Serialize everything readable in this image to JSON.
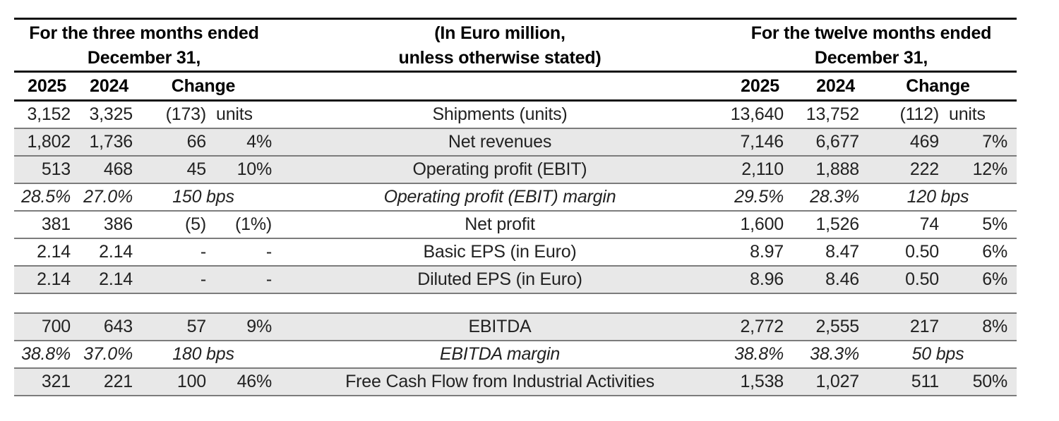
{
  "colors": {
    "shade": "#e8e8e8",
    "row-line": "#7c7c7c",
    "head-line": "#131313",
    "text": "#222222"
  },
  "header": {
    "left_period_line1": "For the three months ended",
    "left_period_line2": "December 31,",
    "unit_note_line1": "(In Euro million,",
    "unit_note_line2": "unless otherwise stated)",
    "right_period_line1": "For the twelve months ended",
    "right_period_line2": "December 31,",
    "col_2025": "2025",
    "col_2024": "2024",
    "col_change": "Change"
  },
  "rows": [
    {
      "label": "Shipments (units)",
      "l1": "3,152",
      "l2": "3,325",
      "lchg": "(173)",
      "lsuf": "units",
      "r1": "13,640",
      "r2": "13,752",
      "rchg": "(112)",
      "rsuf": "units"
    },
    {
      "label": "Net revenues",
      "l1": "1,802",
      "l2": "1,736",
      "lchg": "66",
      "lpct": "4%",
      "r1": "7,146",
      "r2": "6,677",
      "rchg": "469",
      "rpct": "7%"
    },
    {
      "label": "Operating profit (EBIT)",
      "l1": "513",
      "l2": "468",
      "lchg": "45",
      "lpct": "10%",
      "r1": "2,110",
      "r2": "1,888",
      "rchg": "222",
      "rpct": "12%"
    },
    {
      "label": "Operating profit (EBIT) margin",
      "l1": "28.5%",
      "l2": "27.0%",
      "lchg": "150 bps",
      "r1": "29.5%",
      "r2": "28.3%",
      "rchg": "120 bps"
    },
    {
      "label": "Net profit",
      "l1": "381",
      "l2": "386",
      "lchg": "(5)",
      "lpct": "(1%)",
      "r1": "1,600",
      "r2": "1,526",
      "rchg": "74",
      "rpct": "5%"
    },
    {
      "label": "Basic EPS (in Euro)",
      "l1": "2.14",
      "l2": "2.14",
      "lchg": "-",
      "lpct": "-",
      "r1": "8.97",
      "r2": "8.47",
      "rchg": "0.50",
      "rpct": "6%"
    },
    {
      "label": "Diluted EPS (in Euro)",
      "l1": "2.14",
      "l2": "2.14",
      "lchg": "-",
      "lpct": "-",
      "r1": "8.96",
      "r2": "8.46",
      "rchg": "0.50",
      "rpct": "6%"
    },
    {
      "label": "EBITDA",
      "l1": "700",
      "l2": "643",
      "lchg": "57",
      "lpct": "9%",
      "r1": "2,772",
      "r2": "2,555",
      "rchg": "217",
      "rpct": "8%"
    },
    {
      "label": "EBITDA margin",
      "l1": "38.8%",
      "l2": "37.0%",
      "lchg": "180 bps",
      "r1": "38.8%",
      "r2": "38.3%",
      "rchg": "50 bps"
    },
    {
      "label": "Free Cash Flow from Industrial Activities",
      "l1": "321",
      "l2": "221",
      "lchg": "100",
      "lpct": "46%",
      "r1": "1,538",
      "r2": "1,027",
      "rchg": "511",
      "rpct": "50%"
    }
  ]
}
